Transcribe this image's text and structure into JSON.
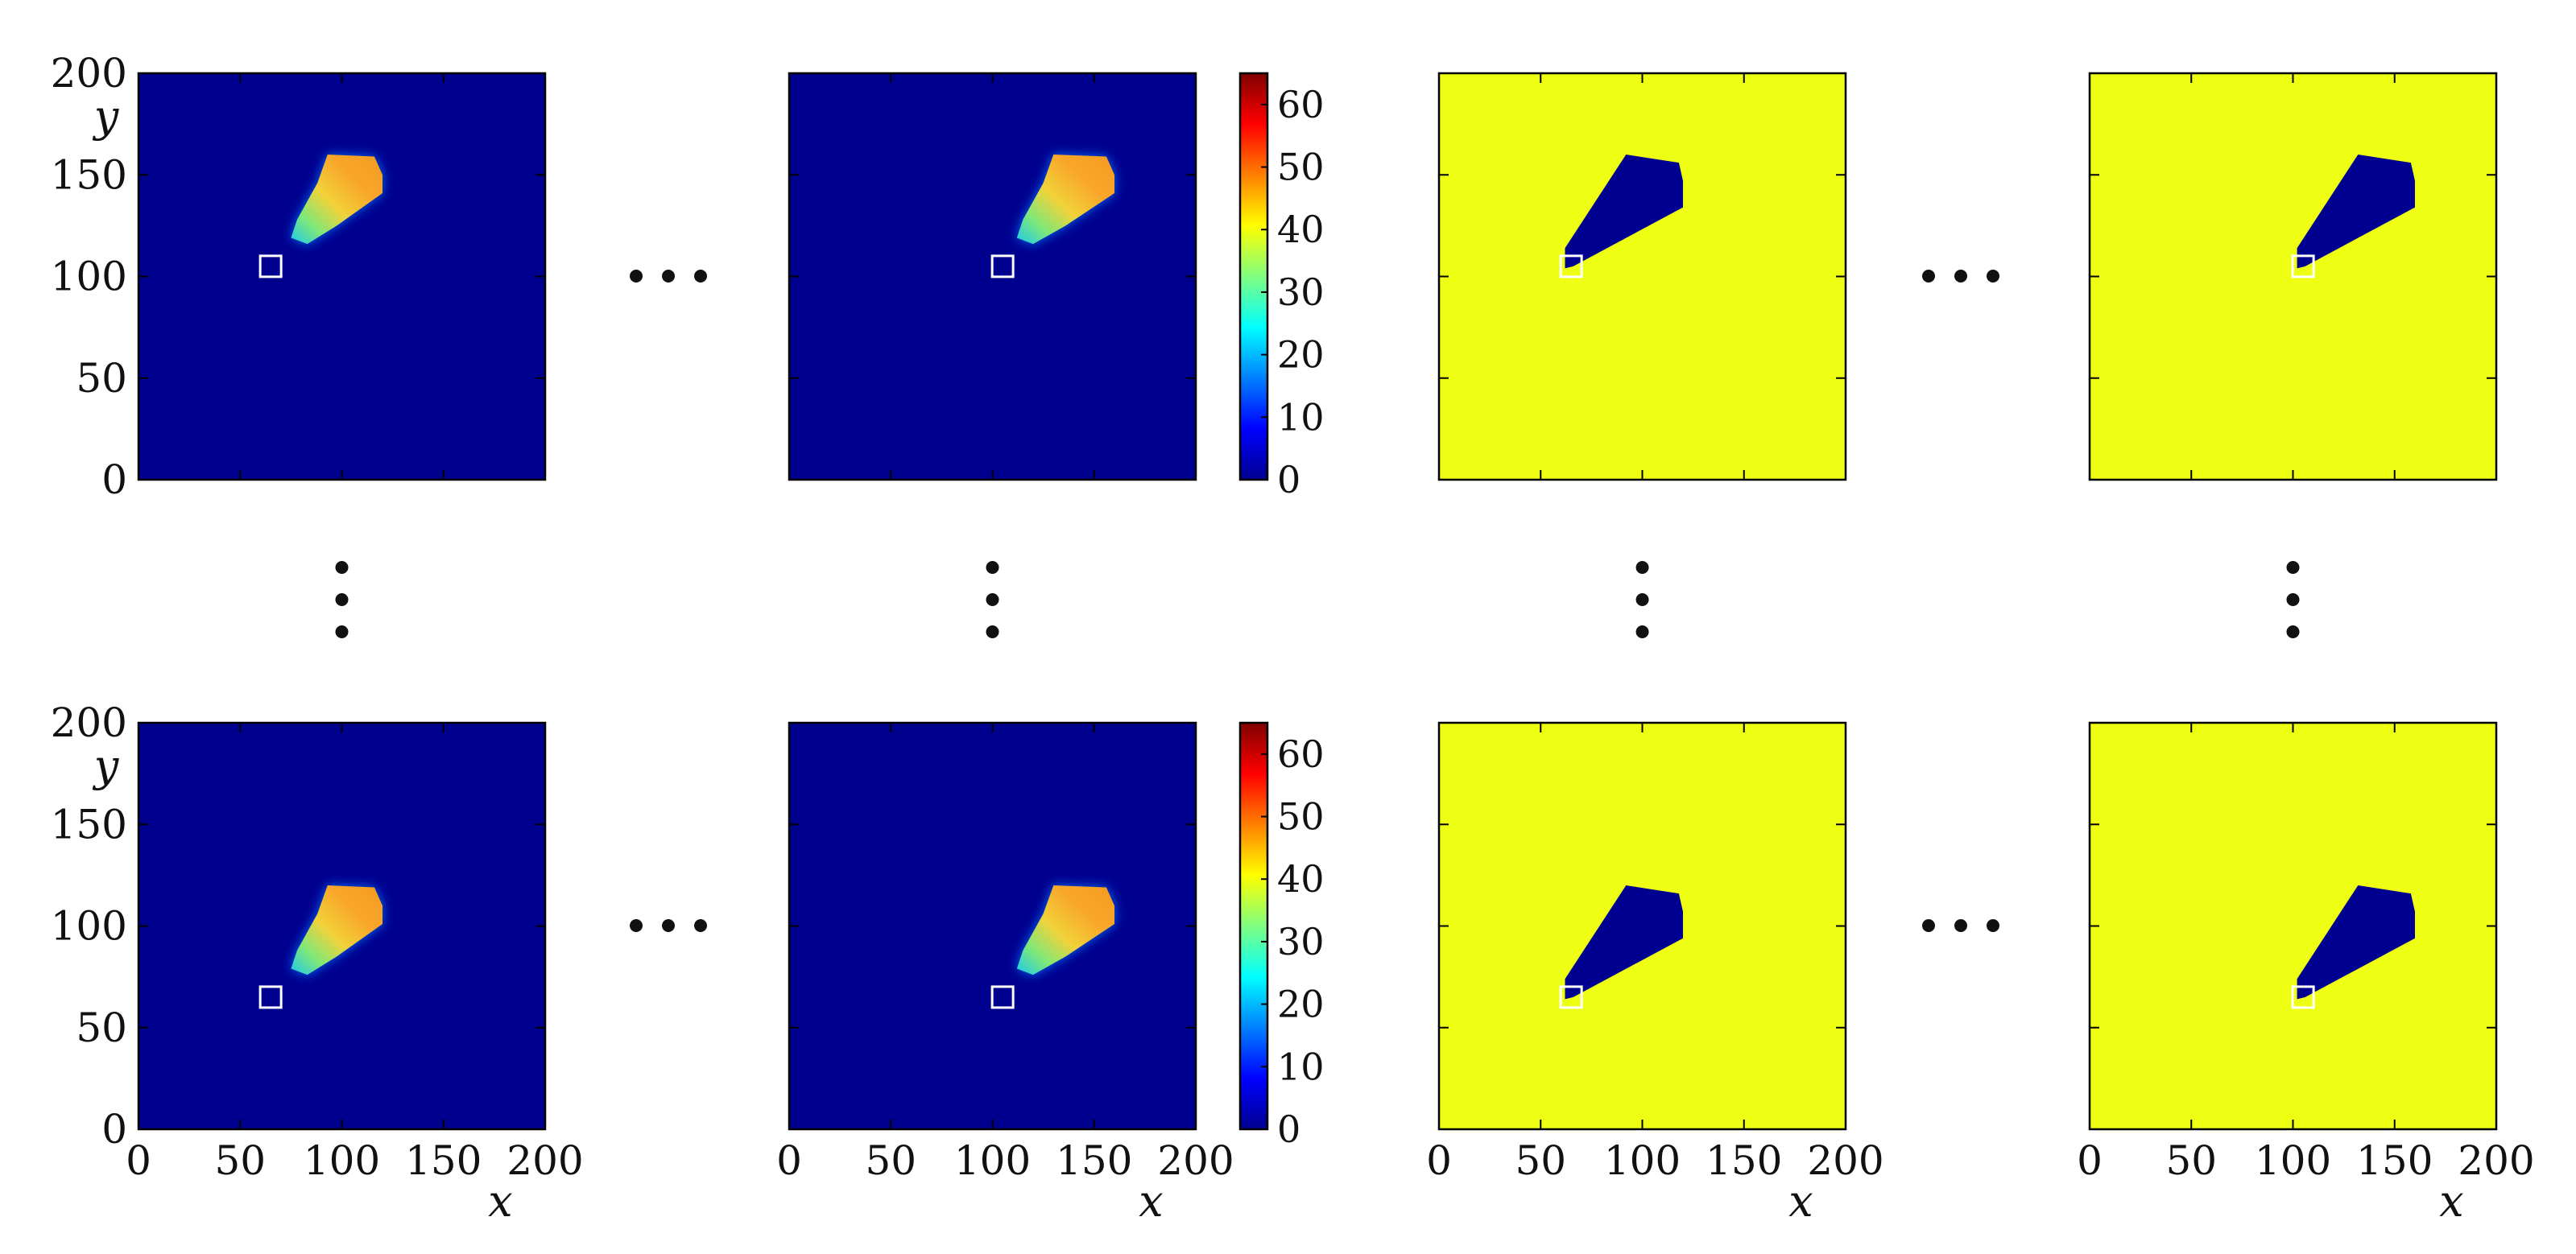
{
  "chart_data": {
    "type": "heatmap",
    "layout": {
      "rows": 2,
      "columns": 4,
      "ellipsis_between_columns": "…",
      "ellipsis_between_rows": "⋮"
    },
    "xlabel": "x",
    "ylabel": "y",
    "xlim": [
      0,
      200
    ],
    "ylim": [
      0,
      200
    ],
    "x_ticks": [
      0,
      50,
      100,
      150,
      200
    ],
    "y_ticks": [
      0,
      50,
      100,
      150,
      200
    ],
    "colorbar": {
      "range": [
        0,
        65
      ],
      "ticks": [
        0,
        10,
        20,
        30,
        40,
        50,
        60
      ]
    },
    "colors": {
      "background_low": "#00008f",
      "plume_high": "#f7a520",
      "mask_fill": "#eeff14",
      "mask_region": "#000090",
      "marker": "#ffffff"
    },
    "panels": [
      {
        "row": 1,
        "col": 1,
        "kind": "field",
        "marker": [
          65,
          105
        ],
        "plume": {
          "top": 160,
          "bottom": 115,
          "left": 75,
          "right": 120
        }
      },
      {
        "row": 1,
        "col": 2,
        "kind": "field",
        "marker": [
          105,
          105
        ],
        "plume": {
          "top": 160,
          "bottom": 115,
          "left": 112,
          "right": 160
        },
        "colorbar": true
      },
      {
        "row": 1,
        "col": 3,
        "kind": "mask",
        "marker": [
          65,
          105
        ],
        "region": {
          "top": 160,
          "bottom": 104,
          "left": 62,
          "right": 120
        }
      },
      {
        "row": 1,
        "col": 4,
        "kind": "mask",
        "marker": [
          105,
          105
        ],
        "region": {
          "top": 160,
          "bottom": 104,
          "left": 102,
          "right": 160
        }
      },
      {
        "row": 2,
        "col": 1,
        "kind": "field",
        "marker": [
          65,
          65
        ],
        "plume": {
          "top": 120,
          "bottom": 75,
          "left": 75,
          "right": 120
        }
      },
      {
        "row": 2,
        "col": 2,
        "kind": "field",
        "marker": [
          105,
          65
        ],
        "plume": {
          "top": 120,
          "bottom": 75,
          "left": 112,
          "right": 160
        },
        "colorbar": true
      },
      {
        "row": 2,
        "col": 3,
        "kind": "mask",
        "marker": [
          65,
          65
        ],
        "region": {
          "top": 120,
          "bottom": 64,
          "left": 62,
          "right": 120
        }
      },
      {
        "row": 2,
        "col": 4,
        "kind": "mask",
        "marker": [
          105,
          65
        ],
        "region": {
          "top": 120,
          "bottom": 64,
          "left": 102,
          "right": 160
        }
      }
    ]
  }
}
